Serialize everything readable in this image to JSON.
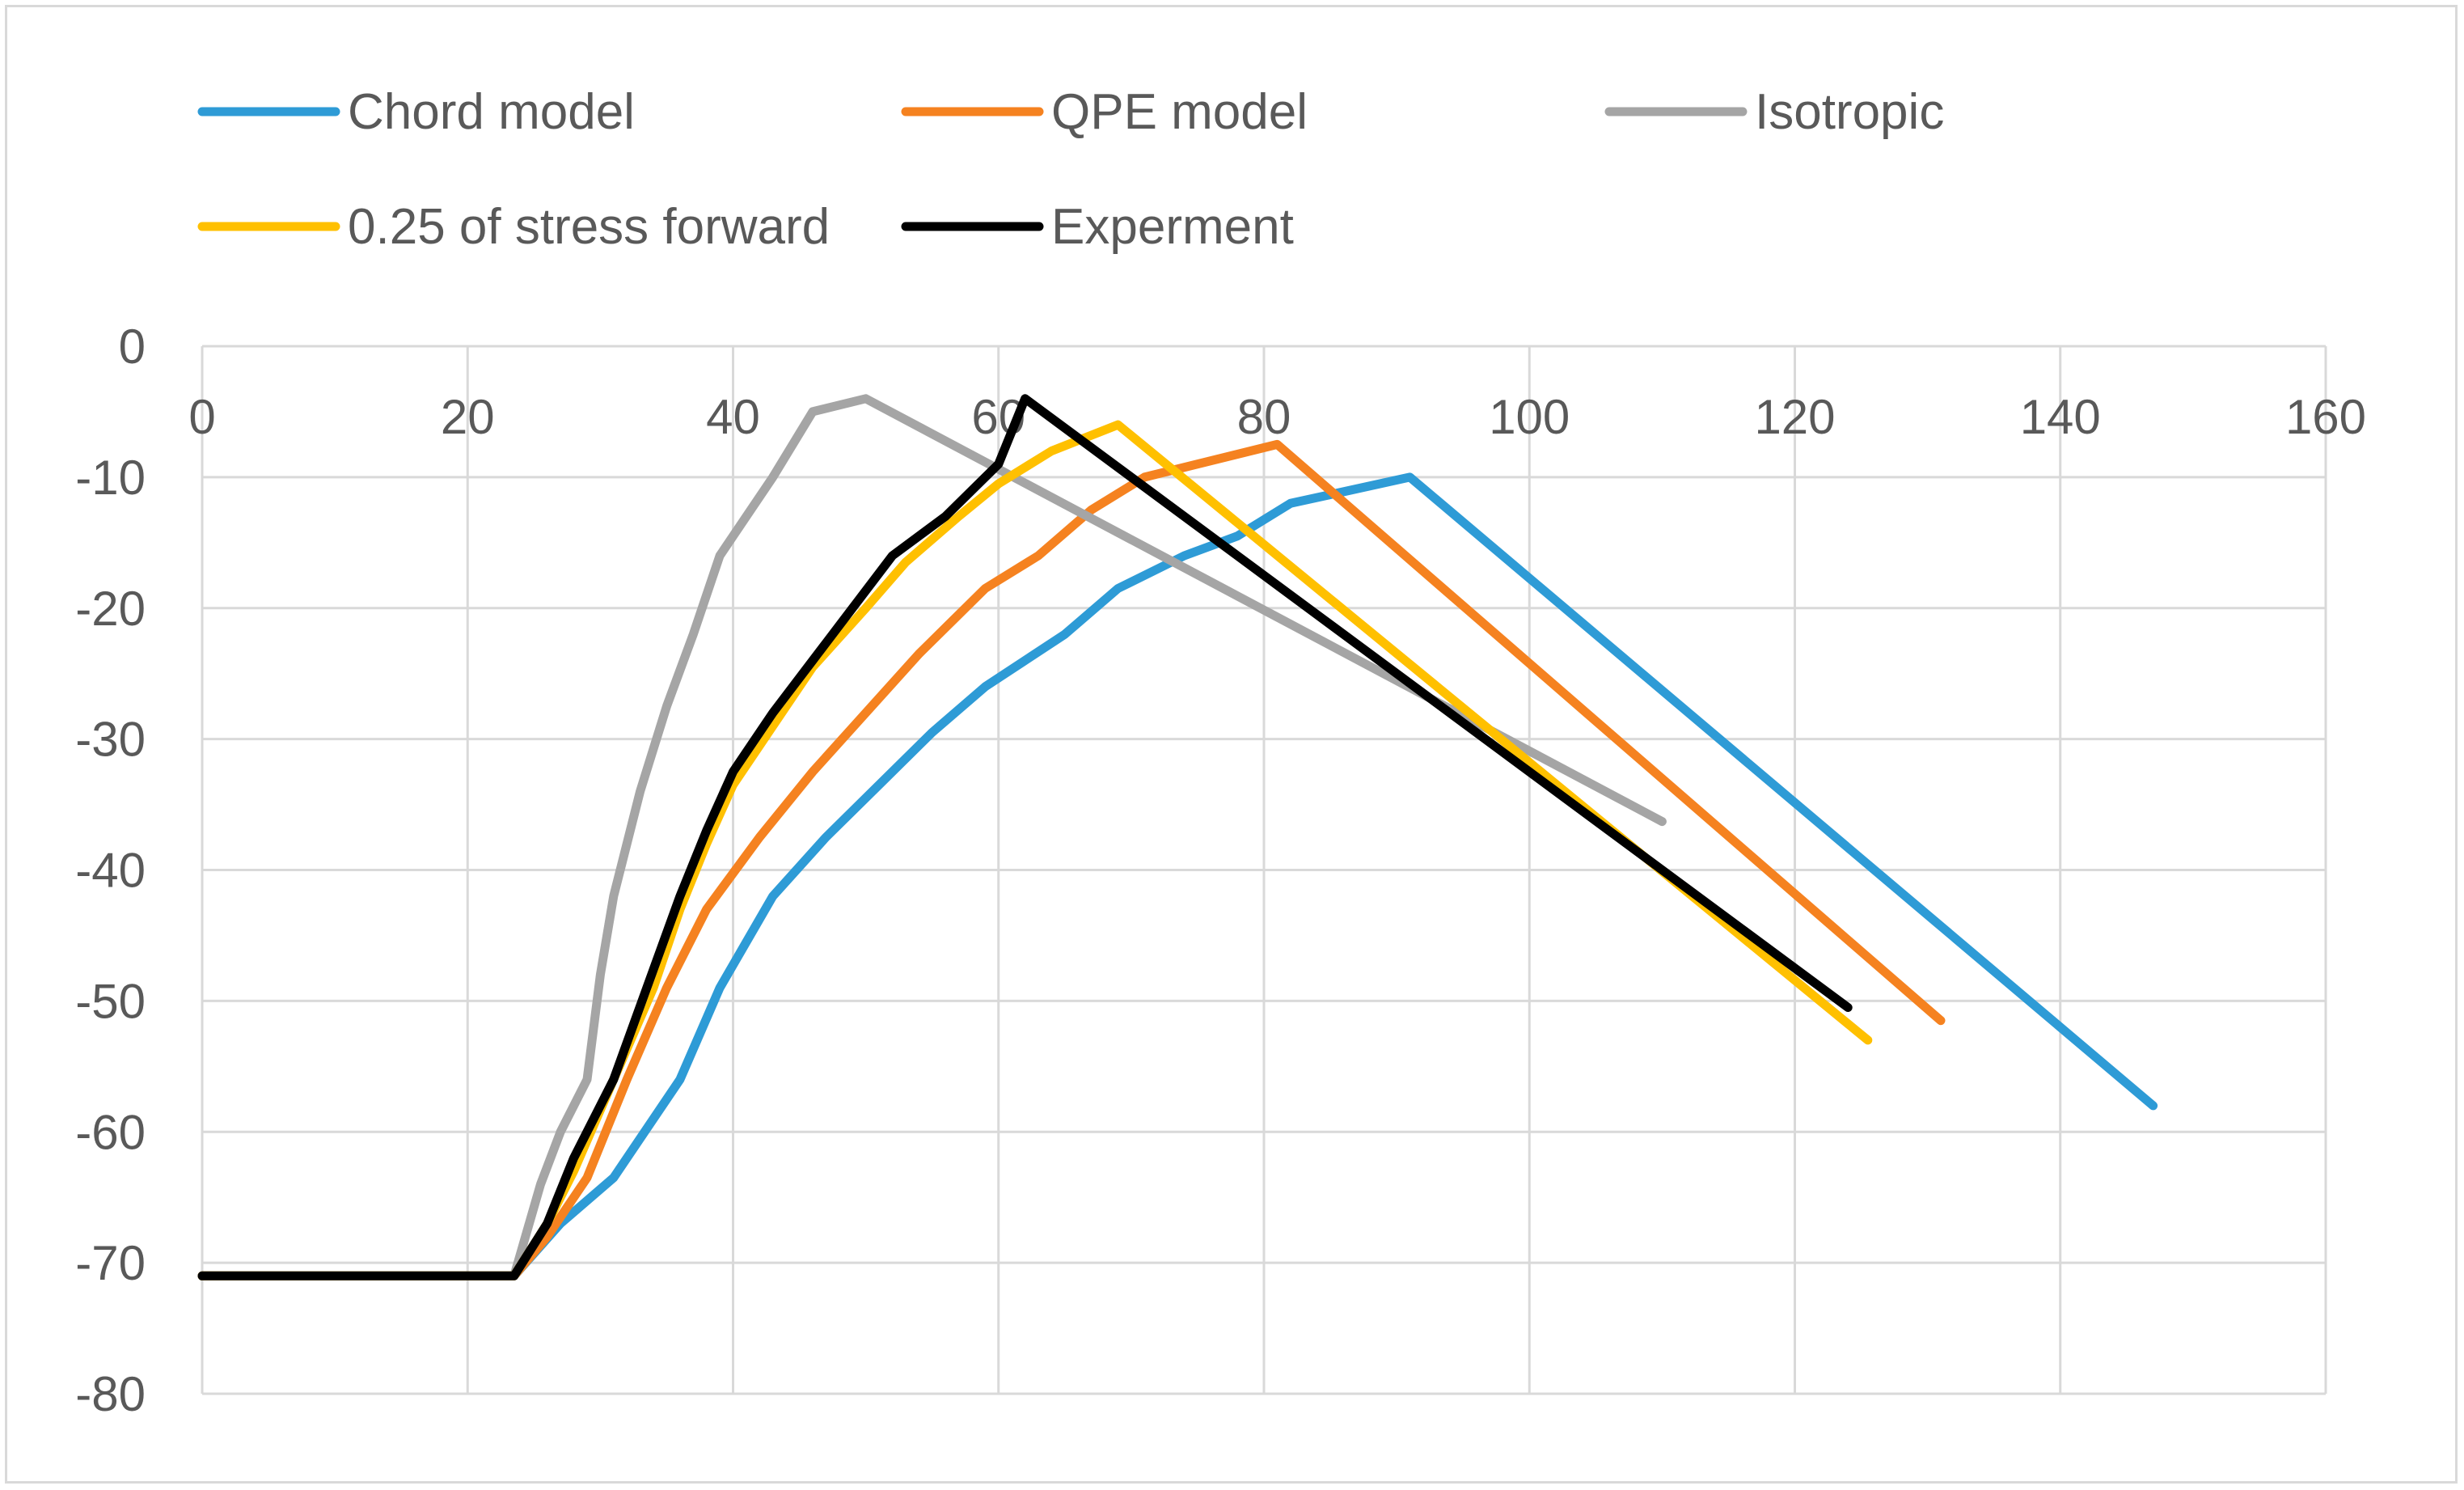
{
  "chart_data": {
    "type": "line",
    "title": "",
    "xlabel": "",
    "ylabel": "",
    "xlim": [
      0,
      160
    ],
    "ylim": [
      -80,
      0
    ],
    "x_ticks": [
      0,
      20,
      40,
      60,
      80,
      100,
      120,
      140,
      160
    ],
    "y_ticks": [
      0,
      -10,
      -20,
      -30,
      -40,
      -50,
      -60,
      -70,
      -80
    ],
    "grid": true,
    "legend_position": "top",
    "series": [
      {
        "name": "Chord model",
        "color": "#2e9bd6",
        "points": [
          [
            0,
            -71
          ],
          [
            23.5,
            -71
          ],
          [
            27,
            -67
          ],
          [
            31,
            -63.5
          ],
          [
            36,
            -56
          ],
          [
            39,
            -49
          ],
          [
            43,
            -42
          ],
          [
            47,
            -37.5
          ],
          [
            51,
            -33.5
          ],
          [
            55,
            -29.5
          ],
          [
            59,
            -26
          ],
          [
            65,
            -22
          ],
          [
            69,
            -18.5
          ],
          [
            74,
            -16
          ],
          [
            78,
            -14.5
          ],
          [
            82,
            -12
          ],
          [
            91,
            -10
          ],
          [
            147,
            -58
          ]
        ]
      },
      {
        "name": "QPE model",
        "color": "#f58220",
        "points": [
          [
            0,
            -71
          ],
          [
            23.5,
            -71
          ],
          [
            26,
            -68
          ],
          [
            29,
            -63.5
          ],
          [
            32,
            -56
          ],
          [
            35,
            -49
          ],
          [
            38,
            -43
          ],
          [
            42,
            -37.5
          ],
          [
            46,
            -32.5
          ],
          [
            50,
            -28
          ],
          [
            54,
            -23.5
          ],
          [
            59,
            -18.5
          ],
          [
            63,
            -16
          ],
          [
            67,
            -12.5
          ],
          [
            71,
            -10
          ],
          [
            81,
            -7.5
          ],
          [
            131,
            -51.5
          ]
        ]
      },
      {
        "name": "Isotropic",
        "color": "#a5a5a5",
        "points": [
          [
            0,
            -71
          ],
          [
            23.5,
            -71
          ],
          [
            25.5,
            -64
          ],
          [
            27,
            -60
          ],
          [
            29,
            -56
          ],
          [
            30,
            -48
          ],
          [
            31,
            -42
          ],
          [
            33,
            -34
          ],
          [
            35,
            -27.5
          ],
          [
            37,
            -22
          ],
          [
            39,
            -16
          ],
          [
            43,
            -10
          ],
          [
            46,
            -5
          ],
          [
            50,
            -4
          ],
          [
            110,
            -36.3
          ]
        ]
      },
      {
        "name": "0.25 of stress forward",
        "color": "#ffc000",
        "points": [
          [
            0,
            -71
          ],
          [
            23.5,
            -71
          ],
          [
            26,
            -67
          ],
          [
            28,
            -63
          ],
          [
            31,
            -56
          ],
          [
            34,
            -49
          ],
          [
            36,
            -43
          ],
          [
            38,
            -38
          ],
          [
            40,
            -33.5
          ],
          [
            43,
            -29
          ],
          [
            46,
            -24.5
          ],
          [
            50,
            -20
          ],
          [
            53,
            -16.5
          ],
          [
            57,
            -13
          ],
          [
            60,
            -10.5
          ],
          [
            64,
            -8
          ],
          [
            69,
            -6
          ],
          [
            125.5,
            -53
          ]
        ]
      },
      {
        "name": "Experment",
        "color": "#000000",
        "points": [
          [
            0,
            -71
          ],
          [
            23.5,
            -71
          ],
          [
            26,
            -67
          ],
          [
            28,
            -62
          ],
          [
            31,
            -56
          ],
          [
            33.5,
            -49
          ],
          [
            36,
            -42
          ],
          [
            38,
            -37
          ],
          [
            40,
            -32.5
          ],
          [
            43,
            -28
          ],
          [
            46,
            -24
          ],
          [
            49,
            -20
          ],
          [
            52,
            -16
          ],
          [
            56,
            -13
          ],
          [
            60,
            -9
          ],
          [
            62,
            -4
          ],
          [
            124,
            -50.5
          ]
        ]
      }
    ]
  }
}
